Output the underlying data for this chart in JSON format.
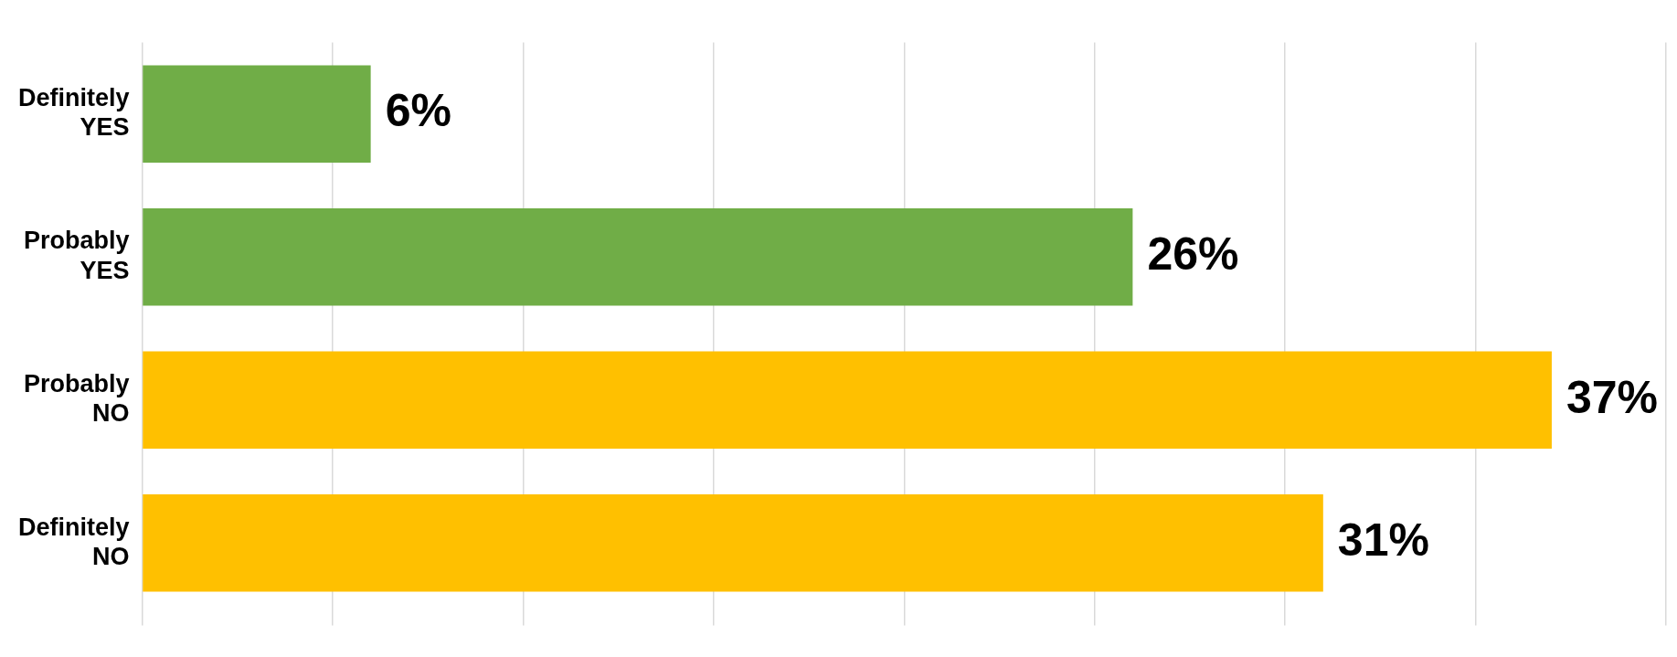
{
  "chart_data": {
    "type": "bar",
    "orientation": "horizontal",
    "categories": [
      "Definitely YES",
      "Probably YES",
      "Probably NO",
      "Definitely NO"
    ],
    "values": [
      6,
      26,
      37,
      31
    ],
    "colors": [
      "#70ad47",
      "#70ad47",
      "#ffc000",
      "#ffc000"
    ],
    "value_labels": [
      "6%",
      "26%",
      "37%",
      "31%"
    ],
    "xlim": [
      0,
      40
    ],
    "xticks": [
      {
        "value": 0,
        "label": null
      },
      {
        "value": 5,
        "label": null
      },
      {
        "value": 10,
        "label": null
      },
      {
        "value": 15,
        "label": null
      },
      {
        "value": 20,
        "label": null
      },
      {
        "value": 25,
        "label": null
      },
      {
        "value": 30,
        "label": null
      },
      {
        "value": 35,
        "label": null
      },
      {
        "value": 40,
        "label": null
      }
    ],
    "grid": "x",
    "legend": false
  }
}
